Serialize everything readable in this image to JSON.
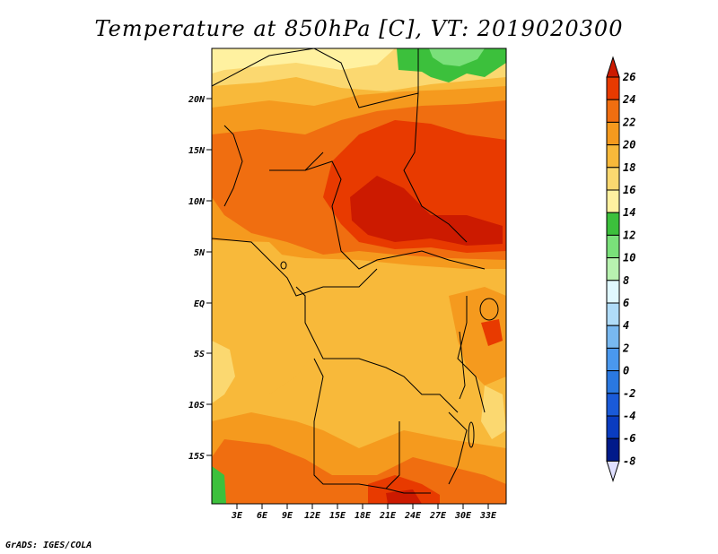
{
  "title": "Temperature at 850hPa [C], VT: 2019020300",
  "credit": "GrADS: IGES/COLA",
  "map": {
    "lon_range": [
      0,
      35
    ],
    "lat_range": [
      -20,
      25
    ],
    "lon_ticks": [
      "3E",
      "6E",
      "9E",
      "12E",
      "15E",
      "18E",
      "21E",
      "24E",
      "27E",
      "30E",
      "33E"
    ],
    "lat_ticks": [
      "20N",
      "15N",
      "10N",
      "5N",
      "EQ",
      "5S",
      "10S",
      "15S"
    ]
  },
  "colorbar": {
    "labels": [
      "26",
      "24",
      "22",
      "20",
      "18",
      "16",
      "14",
      "12",
      "10",
      "8",
      "6",
      "4",
      "2",
      "0",
      "-2",
      "-4",
      "-6",
      "-8"
    ],
    "colors": [
      "#cc1a00",
      "#e83a00",
      "#f06e10",
      "#f59a1e",
      "#f8b93a",
      "#fbd870",
      "#fff1a0",
      "#3cc03c",
      "#7ae07a",
      "#b8f2b0",
      "#e0f8ff",
      "#b0dcf8",
      "#78b8f0",
      "#4a98ee",
      "#2a78e0",
      "#1a5ad8",
      "#0a3cc0",
      "#001a8a"
    ],
    "top_arrow_color": "#cc1a00",
    "bottom_arrow_color": "#e0e0ff"
  },
  "legend_colors": {
    "c26": "#cc1a00",
    "c24": "#e83a00",
    "c22": "#f06e10",
    "c20": "#f59a1e",
    "c18": "#f8b93a",
    "c16": "#fbd870",
    "c14": "#fff1a0",
    "c12": "#3cc03c",
    "c10": "#7ae07a"
  }
}
